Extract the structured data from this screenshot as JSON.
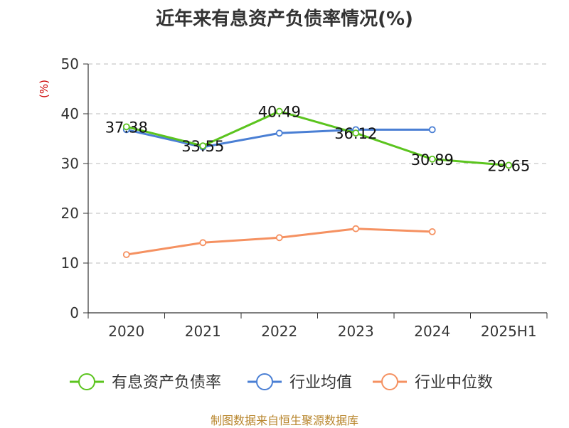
{
  "title": "近年来有息资产负债率情况(%)",
  "source": "制图数据来自恒生聚源数据库",
  "colors": {
    "series_debt": "#5bc41e",
    "series_avg": "#4a7fd4",
    "series_median": "#f59161",
    "axis": "#333333",
    "grid": "#bbbbbb",
    "unit": "#cc0000",
    "source": "#b8862d"
  },
  "chart_data": {
    "type": "line",
    "title": "近年来有息资产负债率情况(%)",
    "ylabel": "(%)",
    "xlabel": "",
    "categories": [
      "2020",
      "2021",
      "2022",
      "2023",
      "2024",
      "2025H1"
    ],
    "ylim": [
      0,
      50
    ],
    "yticks": [
      0,
      10,
      20,
      30,
      40,
      50
    ],
    "grid": true,
    "legend_position": "bottom",
    "series": [
      {
        "name": "有息资产负债率",
        "color": "#5bc41e",
        "values": [
          37.38,
          33.55,
          40.49,
          36.12,
          30.89,
          29.65
        ],
        "labels": [
          "37.38",
          "33.55",
          "40.49",
          "36.12",
          "30.89",
          "29.65"
        ]
      },
      {
        "name": "行业均值",
        "color": "#4a7fd4",
        "values": [
          36.8,
          33.3,
          36.1,
          36.8,
          36.8,
          null
        ]
      },
      {
        "name": "行业中位数",
        "color": "#f59161",
        "values": [
          11.7,
          14.1,
          15.1,
          16.9,
          16.3,
          null
        ]
      }
    ]
  }
}
